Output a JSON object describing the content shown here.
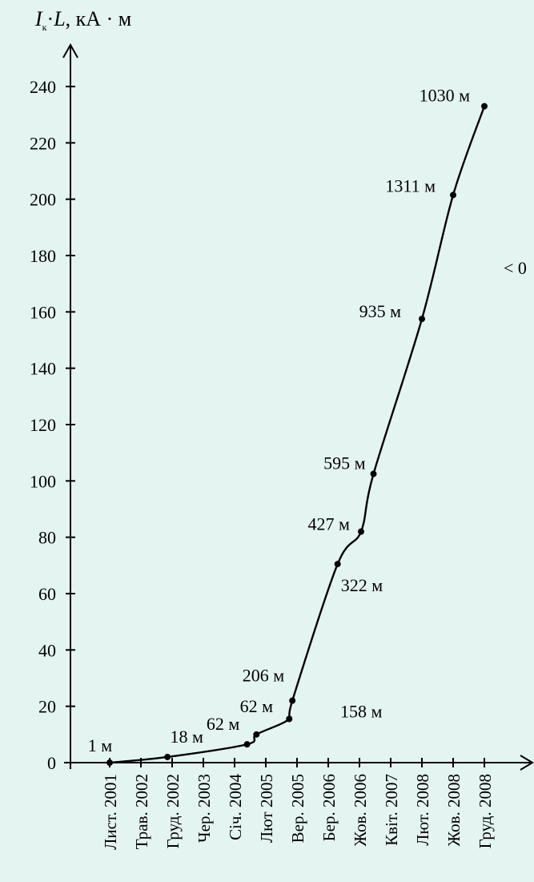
{
  "chart_data": {
    "type": "line",
    "ylabel": {
      "symbol": "I",
      "subscript": "к",
      "middle": "·",
      "symbol2": "L",
      "unit": ", кА · м"
    },
    "y_ticks": [
      "0",
      "20",
      "40",
      "60",
      "80",
      "100",
      "120",
      "140",
      "160",
      "180",
      "200",
      "220",
      "240"
    ],
    "ylim": [
      0,
      240
    ],
    "categories": [
      "Лист. 2001",
      "Трав. 2002",
      "Груд. 2002",
      "Чер. 2003",
      "Січ. 2004",
      "Лют 2005",
      "Вер. 2005",
      "Бер. 2006",
      "Жов. 2006",
      "Квіт. 2007",
      "Лют. 2008",
      "Жов. 2008",
      "Груд. 2008"
    ],
    "points": [
      {
        "x": 0.0,
        "y": 0
      },
      {
        "x": 1.85,
        "y": 2
      },
      {
        "x": 4.4,
        "y": 6.5
      },
      {
        "x": 4.7,
        "y": 10
      },
      {
        "x": 5.75,
        "y": 15.5
      },
      {
        "x": 5.85,
        "y": 22
      },
      {
        "x": 7.3,
        "y": 70.5
      },
      {
        "x": 8.05,
        "y": 82
      },
      {
        "x": 8.45,
        "y": 102.5
      },
      {
        "x": 10.0,
        "y": 157.5
      },
      {
        "x": 11.0,
        "y": 201.5
      },
      {
        "x": 12.0,
        "y": 233
      }
    ],
    "annotations": [
      "1 м",
      "18 м",
      "62 м",
      "62 м",
      "158 м",
      "206 м",
      "322 м",
      "427 м",
      "595 м",
      "935 м",
      "1311 м",
      "1030 м"
    ],
    "side_note": "< 0",
    "grid": false,
    "legend": "none"
  }
}
